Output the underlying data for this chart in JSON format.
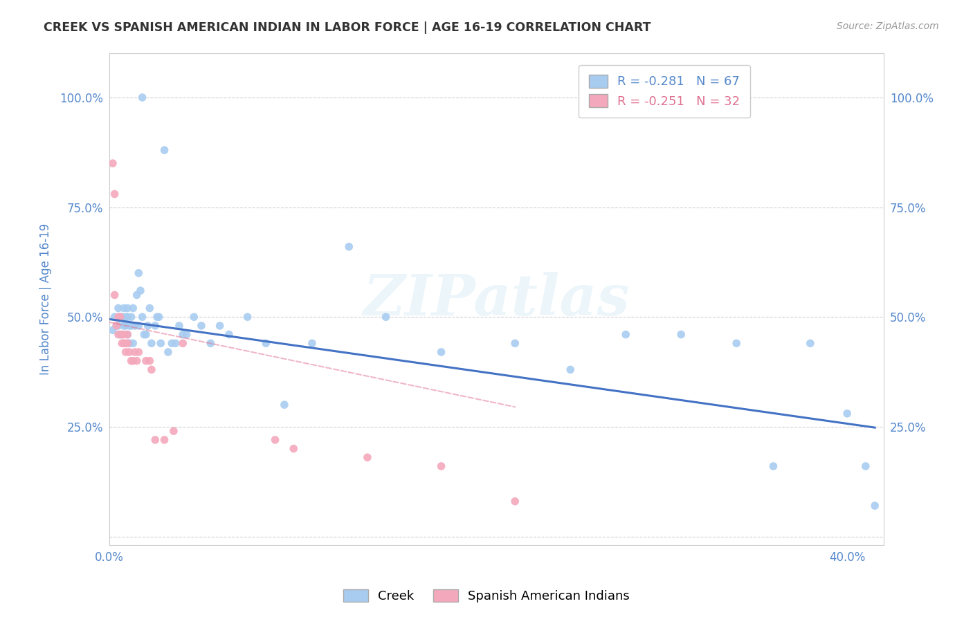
{
  "title": "CREEK VS SPANISH AMERICAN INDIAN IN LABOR FORCE | AGE 16-19 CORRELATION CHART",
  "source": "Source: ZipAtlas.com",
  "ylabel": "In Labor Force | Age 16-19",
  "xlim": [
    0.0,
    0.42
  ],
  "ylim": [
    -0.02,
    1.1
  ],
  "ytick_values": [
    0.0,
    0.25,
    0.5,
    0.75,
    1.0
  ],
  "ytick_labels": [
    "",
    "25.0%",
    "50.0%",
    "75.0%",
    "100.0%"
  ],
  "xtick_values": [
    0.0,
    0.08,
    0.16,
    0.24,
    0.32,
    0.4
  ],
  "xtick_labels": [
    "0.0%",
    "",
    "",
    "",
    "",
    "40.0%"
  ],
  "creek_color": "#A8CCF0",
  "spanish_color": "#F4A8BC",
  "creek_line_color": "#4472C4",
  "spanish_line_color": "#E07090",
  "legend_R_creek": "R = -0.281",
  "legend_N_creek": "N = 67",
  "legend_R_spanish": "R = -0.251",
  "legend_N_spanish": "N = 32",
  "creek_x": [
    0.002,
    0.003,
    0.004,
    0.005,
    0.005,
    0.006,
    0.006,
    0.007,
    0.007,
    0.008,
    0.008,
    0.009,
    0.009,
    0.01,
    0.01,
    0.01,
    0.011,
    0.011,
    0.012,
    0.012,
    0.013,
    0.013,
    0.014,
    0.015,
    0.016,
    0.016,
    0.017,
    0.018,
    0.018,
    0.019,
    0.02,
    0.021,
    0.022,
    0.023,
    0.025,
    0.026,
    0.027,
    0.028,
    0.03,
    0.032,
    0.034,
    0.036,
    0.038,
    0.04,
    0.042,
    0.046,
    0.05,
    0.055,
    0.06,
    0.065,
    0.075,
    0.085,
    0.095,
    0.11,
    0.13,
    0.15,
    0.18,
    0.22,
    0.25,
    0.28,
    0.31,
    0.34,
    0.36,
    0.38,
    0.4,
    0.41,
    0.415
  ],
  "creek_y": [
    0.47,
    0.5,
    0.48,
    0.48,
    0.52,
    0.5,
    0.46,
    0.5,
    0.46,
    0.48,
    0.52,
    0.5,
    0.48,
    0.52,
    0.5,
    0.46,
    0.48,
    0.44,
    0.5,
    0.48,
    0.52,
    0.44,
    0.48,
    0.55,
    0.6,
    0.48,
    0.56,
    1.0,
    0.5,
    0.46,
    0.46,
    0.48,
    0.52,
    0.44,
    0.48,
    0.5,
    0.5,
    0.44,
    0.88,
    0.42,
    0.44,
    0.44,
    0.48,
    0.46,
    0.46,
    0.5,
    0.48,
    0.44,
    0.48,
    0.46,
    0.5,
    0.44,
    0.3,
    0.44,
    0.66,
    0.5,
    0.42,
    0.44,
    0.38,
    0.46,
    0.46,
    0.44,
    0.16,
    0.44,
    0.28,
    0.16,
    0.07
  ],
  "spanish_x": [
    0.002,
    0.003,
    0.004,
    0.005,
    0.005,
    0.006,
    0.007,
    0.007,
    0.008,
    0.008,
    0.009,
    0.009,
    0.01,
    0.01,
    0.011,
    0.012,
    0.013,
    0.014,
    0.015,
    0.016,
    0.02,
    0.022,
    0.023,
    0.025,
    0.03,
    0.035,
    0.04,
    0.09,
    0.1,
    0.14,
    0.18,
    0.22
  ],
  "spanish_y": [
    0.85,
    0.55,
    0.48,
    0.5,
    0.46,
    0.5,
    0.46,
    0.44,
    0.46,
    0.44,
    0.44,
    0.42,
    0.44,
    0.46,
    0.42,
    0.4,
    0.4,
    0.42,
    0.4,
    0.42,
    0.4,
    0.4,
    0.38,
    0.22,
    0.22,
    0.24,
    0.44,
    0.22,
    0.2,
    0.18,
    0.16,
    0.08
  ],
  "spanish_extra": [
    [
      0.003,
      0.78
    ]
  ],
  "creek_trend_x": [
    0.0,
    0.415
  ],
  "creek_trend_y": [
    0.495,
    0.248
  ],
  "spanish_trend_x": [
    0.0,
    0.22
  ],
  "spanish_trend_y": [
    0.488,
    0.295
  ],
  "watermark": "ZIPatlas",
  "background_color": "#FFFFFF",
  "grid_color": "#BBBBBB",
  "title_color": "#333333",
  "label_color": "#5588CC",
  "tick_color": "#5588CC"
}
